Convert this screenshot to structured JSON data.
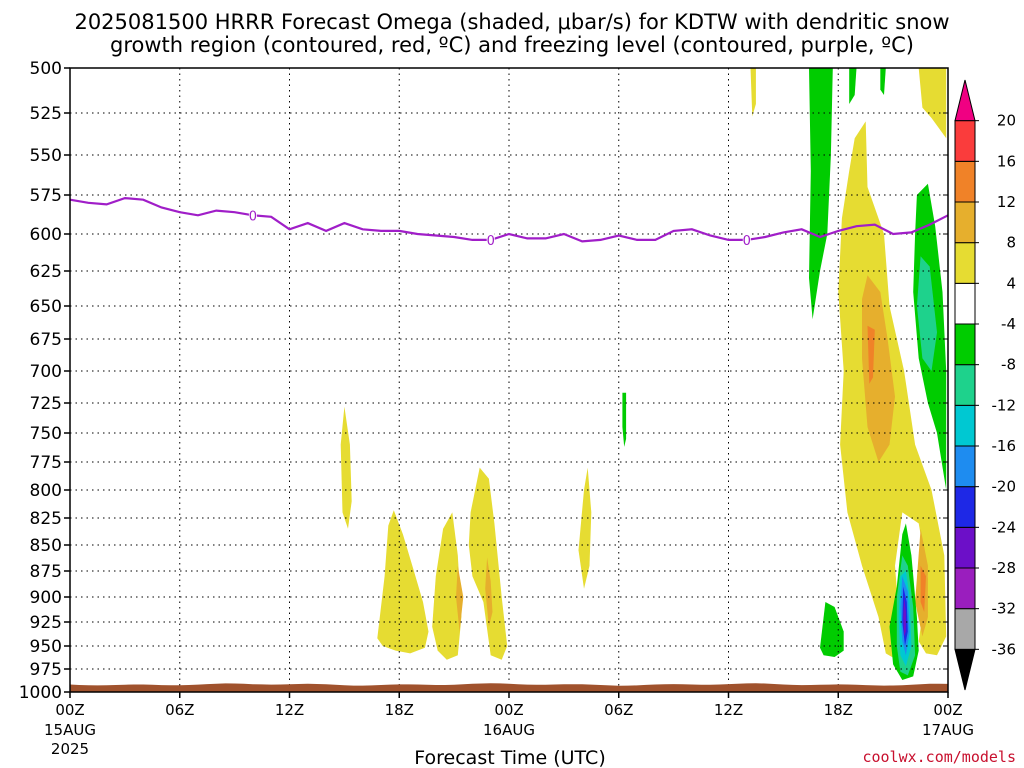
{
  "chart_data": {
    "type": "contour",
    "title_line1": "2025081500 HRRR Forecast Omega (shaded, μbar/s) for KDTW with dendritic snow",
    "title_line2": "growth region (contoured, red, ºC) and freezing level (contoured, purple, ºC)",
    "xlabel": "Forecast Time (UTC)",
    "credit": "coolwx.com/models",
    "x_range_hours": [
      0,
      48
    ],
    "y_levels": [
      500,
      525,
      550,
      575,
      600,
      625,
      650,
      675,
      700,
      725,
      750,
      775,
      800,
      825,
      850,
      875,
      900,
      925,
      950,
      975,
      1000
    ],
    "y_tick_labels": [
      "500",
      "525",
      "550",
      "575",
      "600",
      "625",
      "650",
      "675",
      "700",
      "725",
      "750",
      "775",
      "800",
      "825",
      "850",
      "875",
      "900",
      "925",
      "950",
      "975",
      "1000"
    ],
    "x_ticks": [
      {
        "hour": 0,
        "label": "00Z",
        "sub1": "15AUG",
        "sub2": "2025"
      },
      {
        "hour": 6,
        "label": "06Z",
        "sub1": "",
        "sub2": ""
      },
      {
        "hour": 12,
        "label": "12Z",
        "sub1": "",
        "sub2": ""
      },
      {
        "hour": 18,
        "label": "18Z",
        "sub1": "",
        "sub2": ""
      },
      {
        "hour": 24,
        "label": "00Z",
        "sub1": "16AUG",
        "sub2": ""
      },
      {
        "hour": 30,
        "label": "06Z",
        "sub1": "",
        "sub2": ""
      },
      {
        "hour": 36,
        "label": "12Z",
        "sub1": "",
        "sub2": ""
      },
      {
        "hour": 42,
        "label": "18Z",
        "sub1": "",
        "sub2": ""
      },
      {
        "hour": 48,
        "label": "00Z",
        "sub1": "17AUG",
        "sub2": ""
      }
    ],
    "freezing_level": {
      "label": "0",
      "points": [
        [
          0,
          578
        ],
        [
          1,
          580
        ],
        [
          2,
          581
        ],
        [
          3,
          577
        ],
        [
          4,
          578
        ],
        [
          5,
          583
        ],
        [
          6,
          586
        ],
        [
          7,
          588
        ],
        [
          8,
          585
        ],
        [
          9,
          586
        ],
        [
          10,
          588
        ],
        [
          11,
          589
        ],
        [
          12,
          597
        ],
        [
          13,
          593
        ],
        [
          14,
          598
        ],
        [
          15,
          593
        ],
        [
          16,
          597
        ],
        [
          17,
          598
        ],
        [
          18,
          598
        ],
        [
          19,
          600
        ],
        [
          20,
          601
        ],
        [
          21,
          602
        ],
        [
          22,
          604
        ],
        [
          23,
          604
        ],
        [
          24,
          600
        ],
        [
          25,
          603
        ],
        [
          26,
          603
        ],
        [
          27,
          600
        ],
        [
          28,
          605
        ],
        [
          29,
          604
        ],
        [
          30,
          601
        ],
        [
          31,
          604
        ],
        [
          32,
          604
        ],
        [
          33,
          598
        ],
        [
          34,
          597
        ],
        [
          35,
          601
        ],
        [
          36,
          604
        ],
        [
          37,
          604
        ],
        [
          38,
          602
        ],
        [
          39,
          599
        ],
        [
          40,
          597
        ],
        [
          41,
          602
        ],
        [
          42,
          598
        ],
        [
          43,
          595
        ],
        [
          44,
          594
        ],
        [
          45,
          600
        ],
        [
          46,
          599
        ],
        [
          47,
          594
        ],
        [
          48,
          588
        ]
      ],
      "label_hours": [
        10,
        23,
        37
      ]
    },
    "omega_regions": [
      {
        "range": "4-8",
        "points": [
          [
            15,
            728
          ],
          [
            15.3,
            760
          ],
          [
            15.4,
            810
          ],
          [
            15.2,
            835
          ],
          [
            14.9,
            820
          ],
          [
            14.8,
            760
          ]
        ]
      },
      {
        "range": "4-8",
        "points": [
          [
            16.8,
            942
          ],
          [
            17.2,
            880
          ],
          [
            17.4,
            832
          ],
          [
            17.7,
            818
          ],
          [
            18.2,
            840
          ],
          [
            18.8,
            875
          ],
          [
            19.3,
            905
          ],
          [
            19.6,
            935
          ],
          [
            19.4,
            952
          ],
          [
            18.6,
            958
          ],
          [
            17.8,
            955
          ],
          [
            17.1,
            950
          ]
        ]
      },
      {
        "range": "4-8",
        "points": [
          [
            19.8,
            930
          ],
          [
            20,
            880
          ],
          [
            20.4,
            835
          ],
          [
            20.9,
            820
          ],
          [
            21.2,
            860
          ],
          [
            21.4,
            920
          ],
          [
            21.2,
            960
          ],
          [
            20.6,
            965
          ],
          [
            20.1,
            955
          ]
        ]
      },
      {
        "range": "4-8",
        "points": [
          [
            21.8,
            850
          ],
          [
            21.9,
            820
          ],
          [
            22.4,
            780
          ],
          [
            22.9,
            790
          ],
          [
            23.2,
            830
          ],
          [
            23.6,
            900
          ],
          [
            23.9,
            950
          ],
          [
            23.6,
            965
          ],
          [
            23,
            960
          ],
          [
            22.6,
            905
          ],
          [
            22,
            880
          ]
        ]
      },
      {
        "range": "4-8",
        "points": [
          [
            27.8,
            855
          ],
          [
            28.1,
            800
          ],
          [
            28.3,
            780
          ],
          [
            28.5,
            820
          ],
          [
            28.4,
            870
          ],
          [
            28.1,
            892
          ]
        ]
      },
      {
        "range": "4-8",
        "points": [
          [
            43.5,
            530
          ],
          [
            43.6,
            570
          ],
          [
            44.5,
            600
          ],
          [
            44.8,
            650
          ],
          [
            45.6,
            700
          ],
          [
            46.2,
            760
          ],
          [
            47.1,
            800
          ],
          [
            47.8,
            860
          ],
          [
            47.9,
            940
          ],
          [
            47.4,
            960
          ],
          [
            46.8,
            958
          ],
          [
            46.4,
            945
          ],
          [
            46.9,
            880
          ],
          [
            46.4,
            830
          ],
          [
            45.5,
            820
          ],
          [
            45.1,
            870
          ],
          [
            45.4,
            940
          ],
          [
            45.2,
            965
          ],
          [
            44.6,
            958
          ],
          [
            44.2,
            920
          ],
          [
            43.3,
            870
          ],
          [
            42.5,
            820
          ],
          [
            42.1,
            760
          ],
          [
            42.3,
            700
          ],
          [
            42,
            640
          ],
          [
            42.2,
            590
          ],
          [
            42.6,
            560
          ],
          [
            42.9,
            540
          ]
        ]
      },
      {
        "range": "4-8",
        "points": [
          [
            46.4,
            500
          ],
          [
            47.9,
            500
          ],
          [
            47.9,
            540
          ],
          [
            47.1,
            528
          ],
          [
            46.6,
            522
          ]
        ]
      },
      {
        "range": "4-8",
        "points": [
          [
            37.2,
            500
          ],
          [
            37.5,
            500
          ],
          [
            37.5,
            520
          ],
          [
            37.3,
            527
          ]
        ]
      },
      {
        "range": "8-12",
        "points": [
          [
            21.2,
            870
          ],
          [
            21.5,
            900
          ],
          [
            21.3,
            935
          ],
          [
            21.1,
            900
          ]
        ]
      },
      {
        "range": "8-12",
        "points": [
          [
            22.8,
            862
          ],
          [
            23,
            885
          ],
          [
            23.1,
            915
          ],
          [
            22.9,
            930
          ],
          [
            22.7,
            892
          ]
        ]
      },
      {
        "range": "8-12",
        "points": [
          [
            43.6,
            628
          ],
          [
            44.3,
            640
          ],
          [
            44.7,
            675
          ],
          [
            45.1,
            720
          ],
          [
            44.8,
            760
          ],
          [
            44.2,
            775
          ],
          [
            43.6,
            745
          ],
          [
            43.3,
            690
          ],
          [
            43.3,
            645
          ]
        ]
      },
      {
        "range": "8-12",
        "points": [
          [
            46.5,
            835
          ],
          [
            46.9,
            870
          ],
          [
            46.9,
            920
          ],
          [
            46.6,
            940
          ],
          [
            46.2,
            905
          ]
        ]
      },
      {
        "range": "12-16",
        "points": [
          [
            43.6,
            665
          ],
          [
            44,
            668
          ],
          [
            43.9,
            705
          ],
          [
            43.7,
            710
          ]
        ]
      },
      {
        "range": "12-16",
        "points": [
          [
            46.5,
            870
          ],
          [
            46.8,
            880
          ],
          [
            46.7,
            915
          ],
          [
            46.5,
            905
          ]
        ]
      },
      {
        "range": "-8--4",
        "points": [
          [
            40.4,
            500
          ],
          [
            41.7,
            500
          ],
          [
            41.6,
            550
          ],
          [
            41.4,
            600
          ],
          [
            41,
            625
          ],
          [
            40.6,
            660
          ],
          [
            40.4,
            630
          ],
          [
            40.5,
            560
          ]
        ]
      },
      {
        "range": "-8--4",
        "points": [
          [
            42.6,
            500
          ],
          [
            43,
            500
          ],
          [
            42.9,
            515
          ],
          [
            42.6,
            520
          ]
        ]
      },
      {
        "range": "-8--4",
        "points": [
          [
            44.3,
            500
          ],
          [
            44.6,
            500
          ],
          [
            44.5,
            515
          ],
          [
            44.3,
            512
          ]
        ]
      },
      {
        "range": "-8--4",
        "points": [
          [
            30.2,
            717
          ],
          [
            30.4,
            717
          ],
          [
            30.4,
            755
          ],
          [
            30.3,
            762
          ],
          [
            30.2,
            745
          ]
        ]
      },
      {
        "range": "-8--4",
        "points": [
          [
            46.3,
            575
          ],
          [
            46.9,
            568
          ],
          [
            47.3,
            595
          ],
          [
            47.7,
            640
          ],
          [
            47.9,
            700
          ],
          [
            47.9,
            800
          ],
          [
            47.4,
            750
          ],
          [
            46.9,
            725
          ],
          [
            46.4,
            690
          ],
          [
            46.1,
            640
          ],
          [
            46.2,
            600
          ]
        ]
      },
      {
        "range": "-8--4",
        "points": [
          [
            41,
            952
          ],
          [
            41.3,
            905
          ],
          [
            41.8,
            910
          ],
          [
            42.3,
            935
          ],
          [
            42.3,
            955
          ],
          [
            41.8,
            962
          ],
          [
            41.2,
            960
          ]
        ]
      },
      {
        "range": "-8--4",
        "points": [
          [
            45.2,
            890
          ],
          [
            45.5,
            840
          ],
          [
            45.7,
            830
          ],
          [
            46,
            860
          ],
          [
            46.3,
            920
          ],
          [
            46.4,
            955
          ],
          [
            46.1,
            983
          ],
          [
            45.5,
            987
          ],
          [
            45,
            970
          ],
          [
            44.8,
            930
          ]
        ]
      },
      {
        "range": "-12--8",
        "points": [
          [
            46.5,
            615
          ],
          [
            47,
            622
          ],
          [
            47.4,
            670
          ],
          [
            47.1,
            700
          ],
          [
            46.6,
            690
          ],
          [
            46.3,
            650
          ]
        ]
      },
      {
        "range": "-12--8",
        "points": [
          [
            45.2,
            900
          ],
          [
            45.5,
            860
          ],
          [
            45.8,
            870
          ],
          [
            46.1,
            910
          ],
          [
            46.2,
            960
          ],
          [
            45.8,
            982
          ],
          [
            45.4,
            978
          ],
          [
            45.2,
            950
          ]
        ]
      },
      {
        "range": "-16--12",
        "points": [
          [
            45.4,
            880
          ],
          [
            45.7,
            875
          ],
          [
            45.9,
            900
          ],
          [
            46,
            950
          ],
          [
            45.7,
            972
          ],
          [
            45.4,
            960
          ],
          [
            45.3,
            920
          ]
        ]
      },
      {
        "range": "-20--16",
        "points": [
          [
            45.5,
            880
          ],
          [
            45.8,
            895
          ],
          [
            45.9,
            935
          ],
          [
            45.7,
            960
          ],
          [
            45.5,
            945
          ],
          [
            45.4,
            910
          ]
        ]
      },
      {
        "range": "-24--20",
        "points": [
          [
            45.55,
            890
          ],
          [
            45.75,
            905
          ],
          [
            45.8,
            935
          ],
          [
            45.65,
            950
          ],
          [
            45.5,
            925
          ]
        ]
      },
      {
        "range": "-28--24",
        "points": [
          [
            45.6,
            900
          ],
          [
            45.7,
            915
          ],
          [
            45.7,
            935
          ],
          [
            45.6,
            940
          ],
          [
            45.55,
            920
          ]
        ]
      }
    ],
    "colorbar": {
      "bins": [
        {
          "lo": -40,
          "hi": -36,
          "color": "#000000",
          "label": "-36"
        },
        {
          "lo": -36,
          "hi": -32,
          "color": "#a8a8a8",
          "label": "-32"
        },
        {
          "lo": -32,
          "hi": -28,
          "color": "#9a1ebe",
          "label": "-28"
        },
        {
          "lo": -28,
          "hi": -24,
          "color": "#6c0fc8",
          "label": "-24"
        },
        {
          "lo": -24,
          "hi": -20,
          "color": "#1e28e6",
          "label": "-20"
        },
        {
          "lo": -20,
          "hi": -16,
          "color": "#1e8cf0",
          "label": "-16"
        },
        {
          "lo": -16,
          "hi": -12,
          "color": "#00c8d2",
          "label": "-12"
        },
        {
          "lo": -12,
          "hi": -8,
          "color": "#1ed28c",
          "label": "-8"
        },
        {
          "lo": -8,
          "hi": -4,
          "color": "#00cc00",
          "label": "-4"
        },
        {
          "lo": -4,
          "hi": 4,
          "color": "#ffffff",
          "label": "4"
        },
        {
          "lo": 4,
          "hi": 8,
          "color": "#e6dc32",
          "label": "8"
        },
        {
          "lo": 8,
          "hi": 12,
          "color": "#e6af2d",
          "label": "12"
        },
        {
          "lo": 12,
          "hi": 16,
          "color": "#f08228",
          "label": "16"
        },
        {
          "lo": 16,
          "hi": 20,
          "color": "#fa3c3c",
          "label": "20"
        },
        {
          "lo": 20,
          "hi": 24,
          "color": "#f00082",
          "label": ""
        }
      ]
    },
    "colors": {
      "freezing_line": "#a01ec8",
      "terrain": "#a0522d",
      "grid": "#000000"
    }
  }
}
